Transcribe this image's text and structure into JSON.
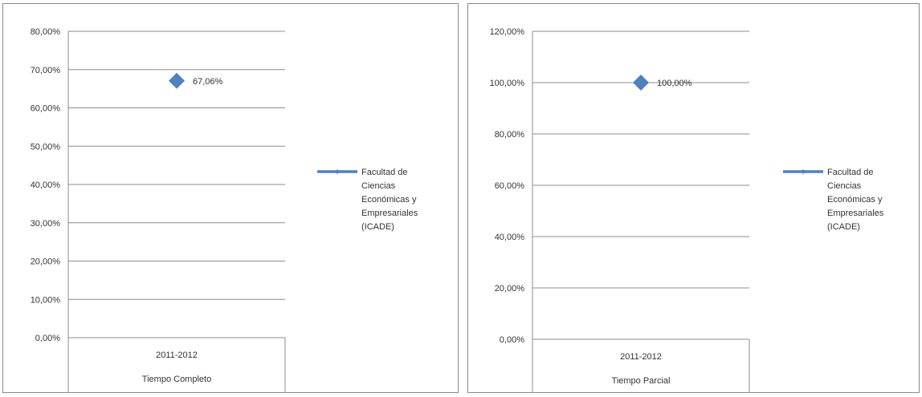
{
  "chart_data": [
    {
      "type": "line",
      "categories": [
        "2011-2012"
      ],
      "category_group": "Tiempo Completo",
      "ylim": [
        0,
        80
      ],
      "yticks": [
        "0,00%",
        "10,00%",
        "20,00%",
        "30,00%",
        "40,00%",
        "50,00%",
        "60,00%",
        "70,00%",
        "80,00%"
      ],
      "series": [
        {
          "name": "Facultad de Ciencias Económicas y Empresariales (ICADE)",
          "values": [
            67.06
          ],
          "labels": [
            "67,06%"
          ]
        }
      ],
      "legend_lines": [
        "Facultad de",
        "Ciencias",
        "Económicas y",
        "Empresariales",
        "(ICADE)"
      ],
      "legend_position": "right",
      "grid": true,
      "color": "#4f81bd"
    },
    {
      "type": "line",
      "categories": [
        "2011-2012"
      ],
      "category_group": "Tiempo Parcial",
      "ylim": [
        0,
        120
      ],
      "yticks": [
        "0,00%",
        "20,00%",
        "40,00%",
        "60,00%",
        "80,00%",
        "100,00%",
        "120,00%"
      ],
      "series": [
        {
          "name": "Facultad de Ciencias Económicas y Empresariales (ICADE)",
          "values": [
            100.0
          ],
          "labels": [
            "100,00%"
          ]
        }
      ],
      "legend_lines": [
        "Facultad de",
        "Ciencias",
        "Económicas y",
        "Empresariales",
        "(ICADE)"
      ],
      "legend_position": "right",
      "grid": true,
      "color": "#4f81bd"
    }
  ]
}
